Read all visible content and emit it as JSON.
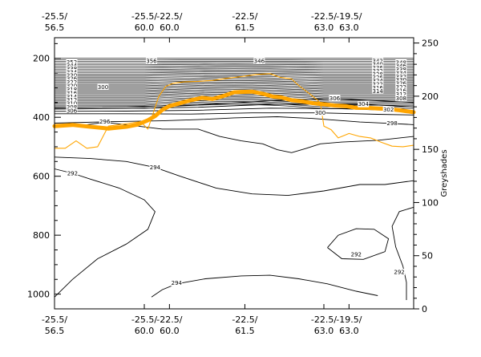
{
  "chart_data": {
    "type": "contour-cross-section",
    "title": "",
    "left_axis": {
      "ylim": [
        1050,
        130
      ],
      "ticks": [
        "200",
        "400",
        "600",
        "800",
        "1000"
      ],
      "tick_values": [
        200,
        400,
        600,
        800,
        1000
      ],
      "minor_step": 50
    },
    "right_axis": {
      "label": "Greyshades",
      "ylim": [
        0,
        255
      ],
      "ticks": [
        "0",
        "50",
        "100",
        "150",
        "200",
        "250"
      ],
      "tick_values": [
        0,
        50,
        100,
        150,
        200,
        250
      ]
    },
    "x_axis": {
      "xlim": [
        0,
        100
      ],
      "ticks": [
        {
          "x": 0,
          "line1": "-25.5/",
          "line2": "56.5"
        },
        {
          "x": 25,
          "line1": "-25.5/",
          "line2": "60.0"
        },
        {
          "x": 32,
          "line1": "-22.5/",
          "line2": "60.0"
        },
        {
          "x": 53,
          "line1": "-22.5/",
          "line2": "61.5"
        },
        {
          "x": 75,
          "line1": "-22.5/",
          "line2": "63.0"
        },
        {
          "x": 82,
          "line1": "-19.5/",
          "line2": "63.0"
        }
      ]
    },
    "stable_layer_labels": [
      {
        "x": 4.8,
        "y": 213,
        "text": "352"
      },
      {
        "x": 4.8,
        "y": 225,
        "text": "344"
      },
      {
        "x": 4.8,
        "y": 236,
        "text": "338"
      },
      {
        "x": 4.8,
        "y": 247,
        "text": "334"
      },
      {
        "x": 4.8,
        "y": 258,
        "text": "330"
      },
      {
        "x": 4.8,
        "y": 270,
        "text": "326"
      },
      {
        "x": 4.8,
        "y": 282,
        "text": "322"
      },
      {
        "x": 4.8,
        "y": 294,
        "text": "320"
      },
      {
        "x": 4.8,
        "y": 306,
        "text": "318"
      },
      {
        "x": 4.8,
        "y": 318,
        "text": "316"
      },
      {
        "x": 4.8,
        "y": 330,
        "text": "314"
      },
      {
        "x": 4.8,
        "y": 342,
        "text": "312"
      },
      {
        "x": 4.8,
        "y": 354,
        "text": "310"
      },
      {
        "x": 4.8,
        "y": 366,
        "text": "308"
      },
      {
        "x": 4.8,
        "y": 378,
        "text": "306"
      },
      {
        "x": 13.5,
        "y": 298,
        "text": "300"
      },
      {
        "x": 27,
        "y": 210,
        "text": "356"
      },
      {
        "x": 57,
        "y": 210,
        "text": "346"
      },
      {
        "x": 90,
        "y": 210,
        "text": "342"
      },
      {
        "x": 90,
        "y": 221,
        "text": "340"
      },
      {
        "x": 90,
        "y": 232,
        "text": "336"
      },
      {
        "x": 90,
        "y": 243,
        "text": "332"
      },
      {
        "x": 90,
        "y": 254,
        "text": "328"
      },
      {
        "x": 90,
        "y": 265,
        "text": "326"
      },
      {
        "x": 90,
        "y": 276,
        "text": "324"
      },
      {
        "x": 90,
        "y": 288,
        "text": "322"
      },
      {
        "x": 90,
        "y": 300,
        "text": "316"
      },
      {
        "x": 90,
        "y": 312,
        "text": "314"
      },
      {
        "x": 96.5,
        "y": 215,
        "text": "348"
      },
      {
        "x": 96.5,
        "y": 226,
        "text": "346"
      },
      {
        "x": 96.5,
        "y": 238,
        "text": "338"
      },
      {
        "x": 96.5,
        "y": 250,
        "text": "334"
      },
      {
        "x": 96.5,
        "y": 262,
        "text": "332"
      },
      {
        "x": 96.5,
        "y": 274,
        "text": "330"
      },
      {
        "x": 96.5,
        "y": 286,
        "text": "326"
      },
      {
        "x": 96.5,
        "y": 298,
        "text": "322"
      },
      {
        "x": 96.5,
        "y": 310,
        "text": "316"
      },
      {
        "x": 96.5,
        "y": 322,
        "text": "312"
      },
      {
        "x": 96.5,
        "y": 336,
        "text": "308"
      }
    ],
    "contours": [
      {
        "label": "306",
        "label_at": [
          78,
          335
        ],
        "points": [
          [
            0,
            366
          ],
          [
            20,
            364
          ],
          [
            40,
            358
          ],
          [
            60,
            344
          ],
          [
            78,
            337
          ],
          [
            100,
            350
          ]
        ]
      },
      {
        "label": "304",
        "label_at": [
          86,
          355
        ],
        "points": [
          [
            0,
            372
          ],
          [
            20,
            370
          ],
          [
            40,
            366
          ],
          [
            60,
            356
          ],
          [
            86,
            356
          ],
          [
            100,
            365
          ]
        ]
      },
      {
        "label": "302",
        "label_at": [
          93,
          374
        ],
        "points": [
          [
            0,
            380
          ],
          [
            20,
            379
          ],
          [
            40,
            376
          ],
          [
            60,
            369
          ],
          [
            80,
            371
          ],
          [
            93,
            376
          ],
          [
            100,
            380
          ]
        ]
      },
      {
        "label": "300",
        "label_at": [
          74,
          384
        ],
        "points": [
          [
            0,
            388
          ],
          [
            20,
            388
          ],
          [
            38,
            389
          ],
          [
            55,
            385
          ],
          [
            74,
            385
          ],
          [
            90,
            390
          ],
          [
            100,
            392
          ]
        ]
      },
      {
        "label": "298",
        "label_at": [
          94,
          420
        ],
        "points": [
          [
            0,
            420
          ],
          [
            15,
            415
          ],
          [
            30,
            412
          ],
          [
            40,
            408
          ],
          [
            50,
            402
          ],
          [
            62,
            398
          ],
          [
            72,
            404
          ],
          [
            85,
            416
          ],
          [
            94,
            421
          ],
          [
            100,
            425
          ]
        ]
      },
      {
        "label": "296",
        "label_at": [
          14,
          415
        ],
        "points": [
          [
            0,
            433
          ],
          [
            8,
            427
          ],
          [
            14,
            417
          ],
          [
            20,
            425
          ],
          [
            30,
            440
          ],
          [
            40,
            440
          ],
          [
            46,
            465
          ],
          [
            52,
            480
          ],
          [
            58,
            490
          ],
          [
            62,
            510
          ],
          [
            66,
            520
          ],
          [
            70,
            506
          ],
          [
            74,
            490
          ],
          [
            80,
            484
          ],
          [
            90,
            478
          ],
          [
            100,
            465
          ]
        ]
      },
      {
        "label": "294",
        "label_at": [
          28,
          570
        ],
        "points": [
          [
            0,
            535
          ],
          [
            10,
            540
          ],
          [
            20,
            550
          ],
          [
            28,
            570
          ],
          [
            35,
            600
          ],
          [
            45,
            640
          ],
          [
            55,
            660
          ],
          [
            65,
            665
          ],
          [
            75,
            650
          ],
          [
            85,
            628
          ],
          [
            92,
            628
          ],
          [
            100,
            615
          ]
        ]
      },
      {
        "label": "292",
        "label_at": [
          5,
          590
        ],
        "points": [
          [
            0,
            575
          ],
          [
            5,
            590
          ],
          [
            10,
            610
          ],
          [
            18,
            640
          ],
          [
            25,
            680
          ],
          [
            28,
            720
          ],
          [
            26,
            780
          ],
          [
            20,
            830
          ],
          [
            12,
            880
          ],
          [
            5,
            950
          ],
          [
            0,
            1010
          ]
        ]
      },
      {
        "label": "294",
        "label_at": [
          34,
          962
        ],
        "points": [
          [
            27,
            1010
          ],
          [
            30,
            985
          ],
          [
            34,
            965
          ],
          [
            42,
            948
          ],
          [
            52,
            938
          ],
          [
            60,
            936
          ],
          [
            68,
            948
          ],
          [
            76,
            965
          ],
          [
            84,
            990
          ],
          [
            90,
            1005
          ]
        ]
      },
      {
        "label": "292",
        "label_at": [
          84,
          865
        ],
        "points": [
          [
            76,
            842
          ],
          [
            79,
            800
          ],
          [
            84,
            778
          ],
          [
            89,
            780
          ],
          [
            93,
            812
          ],
          [
            92,
            856
          ],
          [
            86,
            882
          ],
          [
            80,
            880
          ],
          [
            76,
            842
          ]
        ]
      },
      {
        "label": "292",
        "label_at": [
          96,
          925
        ],
        "points": [
          [
            100,
            705
          ],
          [
            96,
            720
          ],
          [
            94,
            770
          ],
          [
            95,
            840
          ],
          [
            97,
            905
          ],
          [
            98,
            960
          ],
          [
            98,
            1020
          ]
        ]
      }
    ],
    "series": [
      {
        "name": "",
        "color": "#FFA500",
        "width": "thick",
        "points": [
          [
            0,
            430
          ],
          [
            5,
            426
          ],
          [
            10,
            432
          ],
          [
            15,
            438
          ],
          [
            20,
            432
          ],
          [
            23,
            425
          ],
          [
            26,
            410
          ],
          [
            28,
            396
          ],
          [
            30,
            375
          ],
          [
            32,
            362
          ],
          [
            35,
            352
          ],
          [
            38,
            342
          ],
          [
            41,
            334
          ],
          [
            44,
            338
          ],
          [
            47,
            328
          ],
          [
            50,
            315
          ],
          [
            52,
            314
          ],
          [
            55,
            313
          ],
          [
            58,
            320
          ],
          [
            61,
            330
          ],
          [
            63,
            332
          ],
          [
            66,
            342
          ],
          [
            69,
            346
          ],
          [
            72,
            352
          ],
          [
            75,
            356
          ],
          [
            78,
            360
          ],
          [
            81,
            362
          ],
          [
            84,
            368
          ],
          [
            87,
            368
          ],
          [
            90,
            370
          ],
          [
            93,
            372
          ],
          [
            96,
            376
          ],
          [
            100,
            383
          ]
        ]
      },
      {
        "name": "",
        "color": "#FFA500",
        "width": "thin",
        "points": [
          [
            0,
            505
          ],
          [
            3,
            505
          ],
          [
            6,
            480
          ],
          [
            9,
            505
          ],
          [
            12,
            500
          ],
          [
            15,
            430
          ],
          [
            18,
            425
          ],
          [
            21,
            420
          ],
          [
            24,
            415
          ],
          [
            26,
            440
          ],
          [
            29,
            330
          ],
          [
            31,
            295
          ],
          [
            33,
            285
          ],
          [
            36,
            280
          ],
          [
            40,
            278
          ],
          [
            44,
            275
          ],
          [
            48,
            268
          ],
          [
            52,
            262
          ],
          [
            56,
            255
          ],
          [
            60,
            252
          ],
          [
            63,
            265
          ],
          [
            66,
            270
          ],
          [
            68,
            292
          ],
          [
            71,
            320
          ],
          [
            74,
            350
          ],
          [
            75,
            430
          ],
          [
            77,
            442
          ],
          [
            79,
            470
          ],
          [
            82,
            455
          ],
          [
            85,
            465
          ],
          [
            88,
            470
          ],
          [
            91,
            485
          ],
          [
            94,
            498
          ],
          [
            97,
            500
          ],
          [
            100,
            495
          ]
        ]
      }
    ],
    "stable_layer": {
      "y_top": 200,
      "y_bottom": 370,
      "count": 32
    }
  }
}
